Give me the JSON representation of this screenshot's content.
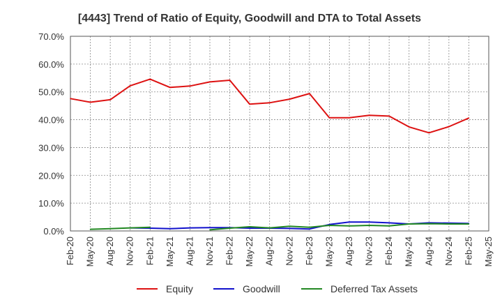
{
  "chart_data": {
    "type": "line",
    "title": "[4443]  Trend of Ratio of Equity, Goodwill and DTA to Total Assets",
    "xlabel": "",
    "ylabel": "",
    "ylim": [
      0,
      70
    ],
    "yticks": [
      "0.0%",
      "10.0%",
      "20.0%",
      "30.0%",
      "40.0%",
      "50.0%",
      "60.0%",
      "70.0%"
    ],
    "categories": [
      "Feb-20",
      "May-20",
      "Aug-20",
      "Nov-20",
      "Feb-21",
      "May-21",
      "Aug-21",
      "Nov-21",
      "Feb-22",
      "May-22",
      "Aug-22",
      "Nov-22",
      "Feb-23",
      "May-23",
      "Aug-23",
      "Nov-23",
      "Feb-24",
      "May-24",
      "Aug-24",
      "Nov-24",
      "Feb-25",
      "May-25"
    ],
    "grid": true,
    "legend_position": "bottom",
    "series": [
      {
        "name": "Equity",
        "color": "#dd1111",
        "values": [
          47.6,
          46.3,
          47.2,
          52.2,
          54.6,
          51.6,
          52.1,
          53.6,
          54.2,
          45.6,
          46.1,
          47.4,
          49.4,
          40.7,
          40.7,
          41.6,
          41.3,
          37.4,
          35.3,
          37.5,
          40.6,
          null
        ]
      },
      {
        "name": "Goodwill",
        "color": "#1111cc",
        "values": [
          null,
          null,
          null,
          1.1,
          1.0,
          0.8,
          1.1,
          1.2,
          1.2,
          1.0,
          1.0,
          0.9,
          0.7,
          2.3,
          3.2,
          3.2,
          2.9,
          2.5,
          2.9,
          2.8,
          2.7,
          null
        ]
      },
      {
        "name": "Deferred Tax Assets",
        "color": "#228822",
        "values": [
          null,
          0.6,
          0.8,
          1.1,
          1.3,
          null,
          null,
          0.4,
          1.0,
          1.5,
          1.1,
          1.7,
          1.3,
          2.0,
          1.8,
          2.0,
          1.8,
          2.5,
          2.6,
          2.5,
          2.5,
          null
        ]
      }
    ]
  }
}
